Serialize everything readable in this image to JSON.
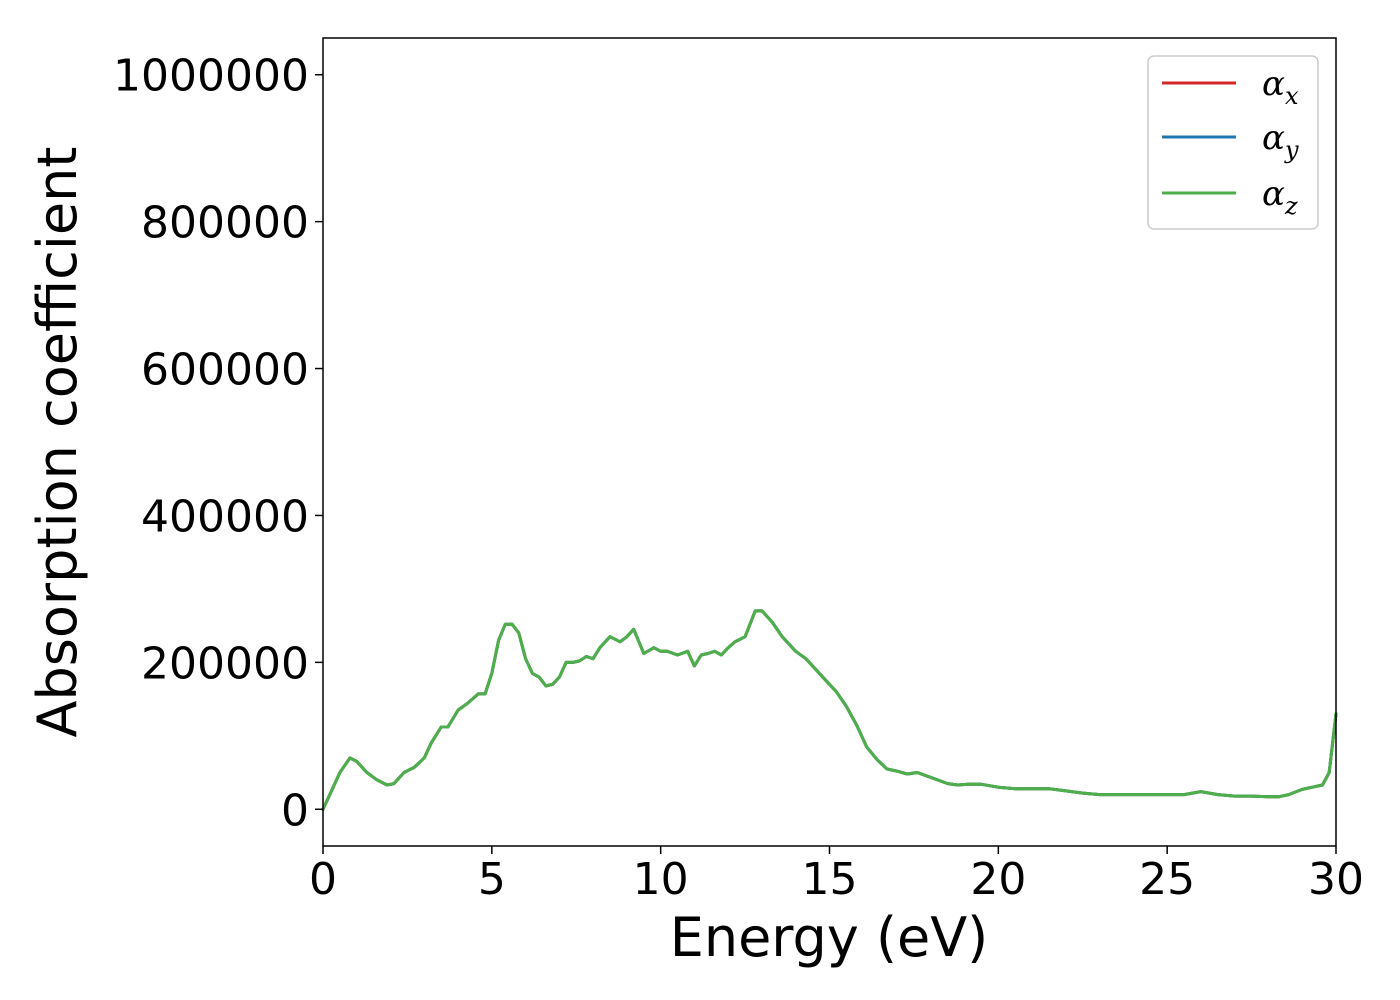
{
  "chart_data": {
    "type": "line",
    "title": "",
    "xlabel": "Energy (eV)",
    "ylabel": "Absorption coefficient",
    "xlim": [
      0,
      30
    ],
    "ylim": [
      -50000,
      1050000
    ],
    "xticks": [
      0,
      5,
      10,
      15,
      20,
      25,
      30
    ],
    "xtick_labels": [
      "0",
      "5",
      "10",
      "15",
      "20",
      "25",
      "30"
    ],
    "yticks": [
      0,
      200000,
      400000,
      600000,
      800000,
      1000000
    ],
    "ytick_labels": [
      "0",
      "200000",
      "400000",
      "600000",
      "800000",
      "1000000"
    ],
    "grid": false,
    "legend_position": "top-right",
    "x": [
      0,
      0.2,
      0.5,
      0.8,
      1.0,
      1.3,
      1.6,
      1.9,
      2.1,
      2.4,
      2.7,
      3.0,
      3.2,
      3.5,
      3.7,
      4.0,
      4.3,
      4.6,
      4.8,
      5.0,
      5.2,
      5.4,
      5.6,
      5.8,
      6.0,
      6.2,
      6.4,
      6.6,
      6.8,
      7.0,
      7.2,
      7.4,
      7.6,
      7.8,
      8.0,
      8.2,
      8.5,
      8.8,
      9.0,
      9.2,
      9.5,
      9.8,
      10.0,
      10.2,
      10.5,
      10.8,
      11.0,
      11.2,
      11.4,
      11.6,
      11.8,
      12.0,
      12.2,
      12.5,
      12.8,
      13.0,
      13.3,
      13.6,
      14.0,
      14.3,
      14.6,
      14.9,
      15.2,
      15.5,
      15.8,
      16.1,
      16.4,
      16.7,
      17.0,
      17.3,
      17.6,
      17.9,
      18.2,
      18.5,
      18.8,
      19.1,
      19.5,
      20.0,
      20.5,
      21.0,
      21.5,
      22.0,
      22.5,
      23.0,
      23.5,
      24.0,
      24.5,
      25.0,
      25.5,
      26.0,
      26.5,
      27.0,
      27.5,
      28.0,
      28.3,
      28.6,
      29.0,
      29.3,
      29.6,
      29.8,
      30.0
    ],
    "series": [
      {
        "name": "α_x",
        "color": "#d62728",
        "values": [
          0,
          20000,
          50000,
          70000,
          65000,
          50000,
          40000,
          33000,
          35000,
          50000,
          57000,
          70000,
          90000,
          112000,
          112000,
          135000,
          145000,
          157000,
          157000,
          185000,
          230000,
          252000,
          252000,
          240000,
          205000,
          185000,
          180000,
          168000,
          170000,
          180000,
          200000,
          200000,
          202000,
          208000,
          205000,
          220000,
          235000,
          228000,
          235000,
          245000,
          212000,
          220000,
          215000,
          215000,
          210000,
          215000,
          195000,
          210000,
          212000,
          215000,
          210000,
          220000,
          228000,
          235000,
          270000,
          270000,
          255000,
          235000,
          215000,
          205000,
          190000,
          175000,
          160000,
          140000,
          115000,
          85000,
          68000,
          55000,
          52000,
          48000,
          50000,
          45000,
          40000,
          35000,
          33000,
          34000,
          34000,
          30000,
          28000,
          28000,
          28000,
          25000,
          22000,
          20000,
          20000,
          20000,
          20000,
          20000,
          20000,
          24000,
          20000,
          18000,
          18000,
          17000,
          17000,
          20000,
          27000,
          30000,
          33000,
          50000,
          130000
        ]
      },
      {
        "name": "α_y",
        "color": "#1f77b4",
        "values": [
          0,
          20000,
          50000,
          70000,
          65000,
          50000,
          40000,
          33000,
          35000,
          50000,
          57000,
          70000,
          90000,
          112000,
          112000,
          135000,
          145000,
          157000,
          157000,
          185000,
          230000,
          252000,
          252000,
          240000,
          205000,
          185000,
          180000,
          168000,
          170000,
          180000,
          200000,
          200000,
          202000,
          208000,
          205000,
          220000,
          235000,
          228000,
          235000,
          245000,
          212000,
          220000,
          215000,
          215000,
          210000,
          215000,
          195000,
          210000,
          212000,
          215000,
          210000,
          220000,
          228000,
          235000,
          270000,
          270000,
          255000,
          235000,
          215000,
          205000,
          190000,
          175000,
          160000,
          140000,
          115000,
          85000,
          68000,
          55000,
          52000,
          48000,
          50000,
          45000,
          40000,
          35000,
          33000,
          34000,
          34000,
          30000,
          28000,
          28000,
          28000,
          25000,
          22000,
          20000,
          20000,
          20000,
          20000,
          20000,
          20000,
          24000,
          20000,
          18000,
          18000,
          17000,
          17000,
          20000,
          27000,
          30000,
          33000,
          50000,
          130000
        ]
      },
      {
        "name": "α_z",
        "color": "#4daf4a",
        "values": [
          0,
          20000,
          50000,
          70000,
          65000,
          50000,
          40000,
          33000,
          35000,
          50000,
          57000,
          70000,
          90000,
          112000,
          112000,
          135000,
          145000,
          157000,
          157000,
          185000,
          230000,
          252000,
          252000,
          240000,
          205000,
          185000,
          180000,
          168000,
          170000,
          180000,
          200000,
          200000,
          202000,
          208000,
          205000,
          220000,
          235000,
          228000,
          235000,
          245000,
          212000,
          220000,
          215000,
          215000,
          210000,
          215000,
          195000,
          210000,
          212000,
          215000,
          210000,
          220000,
          228000,
          235000,
          270000,
          270000,
          255000,
          235000,
          215000,
          205000,
          190000,
          175000,
          160000,
          140000,
          115000,
          85000,
          68000,
          55000,
          52000,
          48000,
          50000,
          45000,
          40000,
          35000,
          33000,
          34000,
          34000,
          30000,
          28000,
          28000,
          28000,
          25000,
          22000,
          20000,
          20000,
          20000,
          20000,
          20000,
          20000,
          24000,
          20000,
          18000,
          18000,
          17000,
          17000,
          20000,
          27000,
          30000,
          33000,
          50000,
          130000
        ]
      }
    ],
    "legend": [
      {
        "base": "α",
        "sub": "x"
      },
      {
        "base": "α",
        "sub": "y"
      },
      {
        "base": "α",
        "sub": "z"
      }
    ]
  }
}
